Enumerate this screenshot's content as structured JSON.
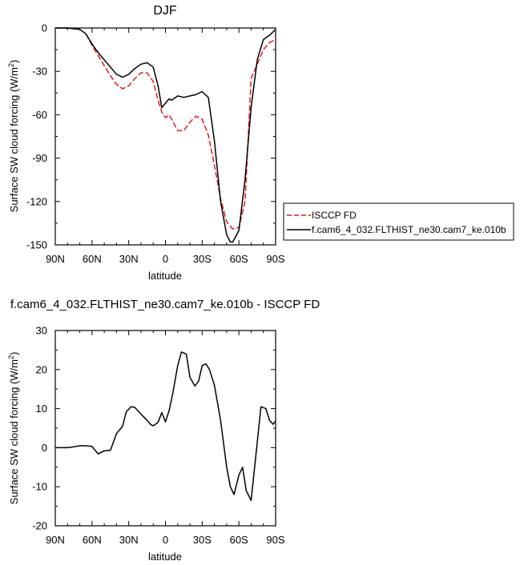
{
  "chart_data": [
    {
      "type": "line",
      "title": "DJF",
      "xlabel": "latitude",
      "ylabel": "Surface SW cloud forcing (W/m",
      "ylabel_sup": "2",
      "ylabel_close": ")",
      "xlim": [
        90,
        -90
      ],
      "ylim": [
        -150,
        0
      ],
      "xticks": [
        90,
        60,
        30,
        0,
        -30,
        -60,
        -90
      ],
      "xtick_labels": [
        "90N",
        "60N",
        "30N",
        "0",
        "30S",
        "60S",
        "90S"
      ],
      "yticks": [
        0,
        -30,
        -60,
        -90,
        -120,
        -150
      ],
      "ytick_labels": [
        "0",
        "-30",
        "-60",
        "-90",
        "-120",
        "-150"
      ],
      "legend": "right",
      "series": [
        {
          "name": "ISCCP FD",
          "color": "#e8191b",
          "style": "dashed",
          "x": [
            90,
            80,
            70,
            65,
            60,
            55,
            50,
            45,
            40,
            35,
            30,
            25,
            20,
            15,
            10,
            6,
            3,
            0,
            -3,
            -5,
            -10,
            -15,
            -20,
            -25,
            -30,
            -35,
            -40,
            -45,
            -50,
            -55,
            -60,
            -65,
            -70,
            -75,
            -80,
            -85,
            -90
          ],
          "y": [
            0,
            0,
            -1,
            -4,
            -12,
            -19,
            -26,
            -33,
            -39,
            -42,
            -40,
            -35,
            -31,
            -31,
            -37,
            -50,
            -58,
            -62,
            -60,
            -63,
            -71,
            -71,
            -65,
            -61,
            -63,
            -74,
            -95,
            -118,
            -134,
            -139,
            -138,
            -120,
            -35,
            -25,
            -15,
            -10,
            -8
          ]
        },
        {
          "name": "f.cam6_4_032.FLTHIST_ne30.cam7_ke.010b",
          "color": "#000000",
          "style": "solid",
          "x": [
            90,
            80,
            70,
            65,
            60,
            55,
            50,
            45,
            40,
            35,
            30,
            25,
            20,
            15,
            10,
            6,
            3,
            0,
            -3,
            -5,
            -10,
            -15,
            -20,
            -25,
            -30,
            -35,
            -40,
            -45,
            -50,
            -53,
            -55,
            -60,
            -65,
            -70,
            -75,
            -80,
            -85,
            -90
          ],
          "y": [
            0,
            0,
            -1,
            -4,
            -11,
            -17,
            -22,
            -27,
            -32,
            -34,
            -32,
            -28,
            -25,
            -24,
            -27,
            -40,
            -55,
            -52,
            -49,
            -50,
            -47,
            -48,
            -47,
            -46,
            -44,
            -48,
            -78,
            -120,
            -143,
            -148,
            -148,
            -140,
            -105,
            -55,
            -22,
            -8,
            -5,
            -1
          ]
        }
      ]
    },
    {
      "type": "line",
      "title": "f.cam6_4_032.FLTHIST_ne30.cam7_ke.010b - ISCCP FD",
      "xlabel": "latitude",
      "ylabel": "Surface SW cloud forcing (W/m",
      "ylabel_sup": "2",
      "ylabel_close": ")",
      "xlim": [
        90,
        -90
      ],
      "ylim": [
        -20,
        30
      ],
      "xticks": [
        90,
        60,
        30,
        0,
        -30,
        -60,
        -90
      ],
      "xtick_labels": [
        "90N",
        "60N",
        "30N",
        "0",
        "30S",
        "60S",
        "90S"
      ],
      "yticks": [
        30,
        20,
        10,
        0,
        -10,
        -20
      ],
      "ytick_labels": [
        "30",
        "20",
        "10",
        "0",
        "-10",
        "-20"
      ],
      "series": [
        {
          "color": "#000000",
          "style": "solid",
          "x": [
            90,
            80,
            75,
            70,
            65,
            60,
            55,
            50,
            45,
            40,
            35,
            32,
            28,
            25,
            20,
            15,
            12,
            10,
            6,
            3,
            0,
            -3,
            -6,
            -10,
            -13,
            -17,
            -20,
            -24,
            -27,
            -30,
            -33,
            -36,
            -40,
            -45,
            -50,
            -53,
            -56,
            -60,
            -63,
            -66,
            -70,
            -74,
            -78,
            -82,
            -85,
            -88,
            -90
          ],
          "y": [
            0,
            0,
            0.2,
            0.5,
            0.5,
            0.3,
            -1.6,
            -0.8,
            -0.7,
            3.6,
            5.5,
            9.2,
            10.5,
            10.3,
            8.6,
            7.0,
            5.9,
            5.6,
            6.5,
            9.0,
            6.6,
            9.5,
            14,
            21,
            24.5,
            24,
            18,
            15.8,
            17,
            21,
            21.5,
            20,
            16,
            7,
            -5,
            -10,
            -12,
            -7,
            -5,
            -11,
            -13.5,
            -1.5,
            10.5,
            10,
            7,
            6,
            6.8
          ]
        }
      ]
    }
  ]
}
